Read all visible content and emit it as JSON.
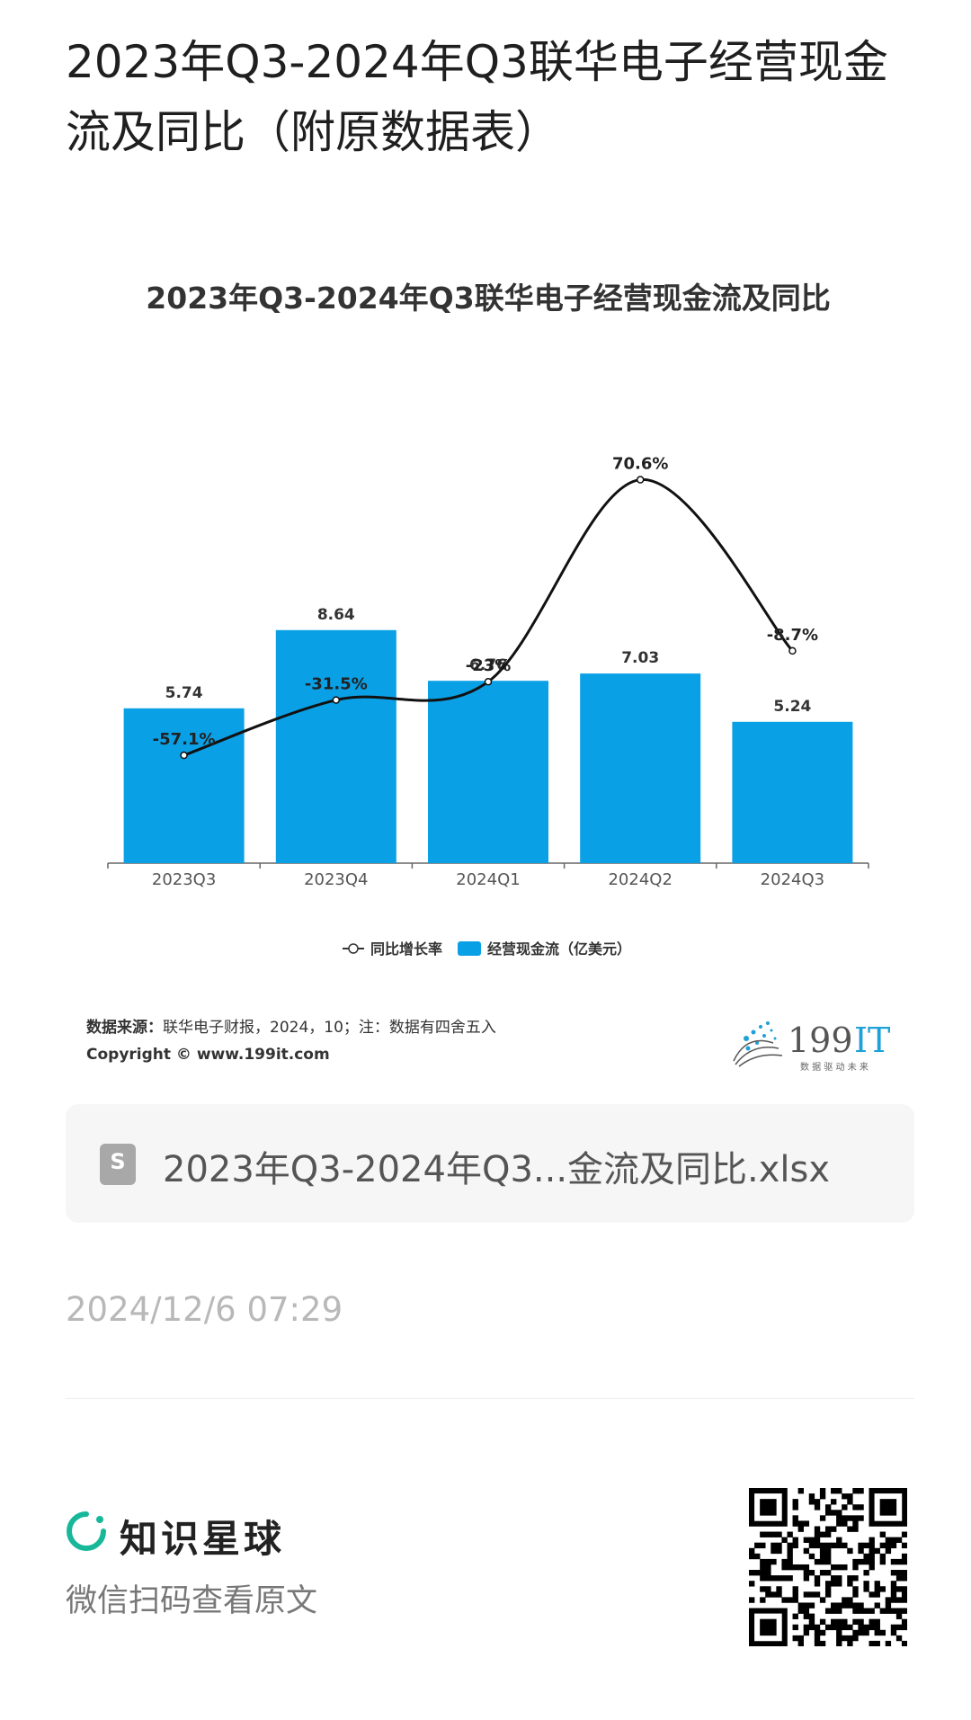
{
  "post": {
    "title": "2023年Q3-2024年Q3联华电子经营现金流及同比（附原数据表）",
    "time": "2024/12/6 07:29"
  },
  "chart_data": {
    "type": "bar",
    "title": "2023年Q3-2024年Q3联华电子经营现金流及同比",
    "categories": [
      "2023Q3",
      "2023Q4",
      "2024Q1",
      "2024Q2",
      "2024Q3"
    ],
    "series": [
      {
        "name": "经营现金流（亿美元）",
        "type": "bar",
        "values": [
          5.74,
          8.64,
          6.76,
          7.03,
          5.24
        ],
        "labels": [
          "5.74",
          "8.64",
          "6.76",
          "7.03",
          "5.24"
        ],
        "color": "#0aa0e6"
      },
      {
        "name": "同比增长率",
        "type": "line",
        "values": [
          -57.1,
          -31.5,
          -23,
          70.6,
          -8.7
        ],
        "labels": [
          "-57.1%",
          "-31.5%",
          "-23%",
          "70.6%",
          "-8.7%"
        ],
        "color": "#111111"
      }
    ],
    "legend": [
      "同比增长率",
      "经营现金流（亿美元）"
    ],
    "legend_position": "bottom",
    "grid": false
  },
  "source": {
    "label": "数据来源：",
    "text": "联华电子财报，2024，10；注：数据有四舍五入",
    "copyright": "Copyright © www.199it.com"
  },
  "logo": {
    "name": "199IT",
    "prefix": "199",
    "suffix": "IT",
    "tagline": "数 据 驱 动 未 来"
  },
  "file": {
    "name": "2023年Q3-2024年Q3...金流及同比.xlsx",
    "icon": "S"
  },
  "brand": {
    "name": "知识星球",
    "scan_tip": "微信扫码查看原文"
  },
  "colors": {
    "bar": "#0aa0e6",
    "accent": "#17b79a"
  }
}
